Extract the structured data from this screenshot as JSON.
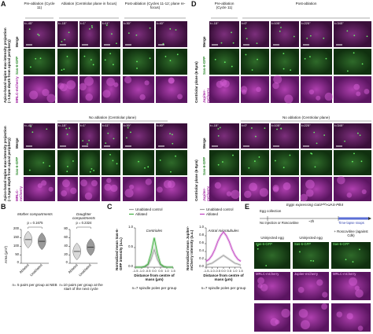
{
  "panel_a": {
    "label": "A",
    "headers": [
      "Pre-ablation (Cycle 11)",
      "Ablation (Centriolar plane in focus)",
      "Post-ablation (Cycles 11-12; plane re-focus)"
    ],
    "times_top": [
      "t=-45''",
      "t=-15''",
      "t=1''",
      "t=11''",
      "t=30''",
      "t=40''"
    ],
    "row_labels_top": [
      "Merge",
      "Sas-6-GFP",
      "MRLC-mCherry"
    ],
    "side_label_top": "Apico-basal region max-intensity projection (~1.5μm depth from apical periphery)",
    "subheader": "No ablation (Centriolar plane)",
    "times_bottom": [
      "t=-45''",
      "t=-15''",
      "t=1''",
      "t=11''",
      "t=30''",
      "t=40''"
    ],
    "row_labels_bottom": [
      "Merge",
      "Sas-6-GFP",
      "MRLC-mCherry"
    ],
    "side_label_bottom": "Apico-basal region max-intensity projection (~1.5μm depth from apical periphery)"
  },
  "panel_d": {
    "label": "D",
    "headers": [
      "Pre-ablation (Cycle 11)",
      "Post-ablation"
    ],
    "times_top": [
      "t=-15''",
      "t=0''",
      "t=105''",
      "t=225''",
      "t=345''"
    ],
    "row_labels_top": [
      "Merge",
      "Sas-6-GFP",
      "Jupiter-mCherry"
    ],
    "side_label_top": "Centriolar plane (6-8μm)",
    "subheader": "No ablation (Centriolar plane)",
    "times_bottom": [
      "t=-15''",
      "t=0''",
      "t=105''",
      "t=225''",
      "t=345''"
    ],
    "row_labels_bottom": [
      "Merge",
      "Sas-6-GFP",
      "Jupiter-mCherry"
    ],
    "side_label_bottom": "Centriolar plane (6-8μm)"
  },
  "panel_b": {
    "label": "B"
  },
  "panel_c": {
    "label": "C"
  },
  "panel_e": {
    "label": "E",
    "title": "Eggs expressing Gal4ᵛ³²>UAS-Plk4",
    "egg_collection": "Egg collection",
    "condition": "No injection or Roscovitine",
    "duration": "~2h",
    "snaps": "Time-lapse snaps",
    "col_headers": [
      "Uninjected egg",
      "Uninjected egg",
      "+ Roscovitine (against Cdk)"
    ],
    "row1_labels": [
      "Sas-6-GFP",
      "Sas-6-GFP",
      "Sas-6-GFP"
    ],
    "row2_labels": [
      "MRLC-mCherry",
      "Jupiter-mCherry",
      "MRLC-mCherry"
    ]
  },
  "chart_data": [
    {
      "type": "violin",
      "title": "Mother compartments",
      "ylabel": "Area (μm²)",
      "categories": [
        "Ablated",
        "Unablated"
      ],
      "values": [
        140,
        130
      ],
      "colors": [
        "#d9d9d9",
        "#9a9a9a"
      ],
      "ylim": [
        0,
        200
      ],
      "yticks": [
        0,
        50,
        100,
        150,
        200
      ],
      "annotation": "p = 0.1675",
      "note": "n= 5 pairs per group at NEB"
    },
    {
      "type": "violin",
      "title": "Daughter compartments",
      "categories": [
        "Ablated",
        "Unablated"
      ],
      "values": [
        28,
        38
      ],
      "colors": [
        "#d9d9d9",
        "#9a9a9a"
      ],
      "ylim": [
        0,
        80
      ],
      "yticks": [
        0,
        20,
        40,
        60,
        80
      ],
      "annotation": "p = 0.2324",
      "note": "n=10 pairs per group at the start of the next cycle"
    },
    {
      "type": "line",
      "title": "Centrioles",
      "ylabel": "Normalized mean Sas-6-GFP intensity (a.u.)",
      "xlabel": "Distance from centre of mass (μm)",
      "x": [
        -1.5,
        -1.25,
        -1.0,
        -0.75,
        -0.5,
        -0.25,
        0.0,
        0.25,
        0.5,
        0.75,
        1.0,
        1.25,
        1.5
      ],
      "series": [
        {
          "name": "Unablated control",
          "color": "#9e9e9e",
          "values": [
            0,
            0,
            0,
            0.01,
            0.05,
            0.2,
            0.45,
            0.2,
            0.05,
            0.01,
            0,
            0,
            0
          ]
        },
        {
          "name": "Ablated",
          "color": "#3fae3f",
          "values": [
            0,
            0,
            0,
            0.02,
            0.08,
            0.35,
            0.75,
            0.35,
            0.08,
            0.02,
            0,
            0,
            0
          ]
        }
      ],
      "xlim": [
        -1.5,
        1.5
      ],
      "xticks": [
        -1.5,
        {
          "value": -1.0,
          "label": "-1.0"
        },
        -0.5,
        {
          "value": 0,
          "label": "0.0"
        },
        0.5,
        {
          "value": 1.0,
          "label": "1.0"
        },
        1.5
      ],
      "ylim": [
        0,
        1
      ],
      "yticks": [
        {
          "value": 0,
          "label": "0.0"
        },
        0.5,
        {
          "value": 1,
          "label": "1.0"
        }
      ],
      "note": "n=7 spindle poles per group"
    },
    {
      "type": "line",
      "title": "Astral microtubules",
      "ylabel": "Normalized mean Jupiter-mCherry intensity (a.u.)",
      "xlabel": "Distance from centre of mass (μm)",
      "x": [
        -1.5,
        -1.25,
        -1.0,
        -0.75,
        -0.5,
        -0.25,
        0.0,
        0.25,
        0.5,
        0.75,
        1.0,
        1.25,
        1.5
      ],
      "series": [
        {
          "name": "Unablated control",
          "color": "#9e9e9e",
          "values": [
            0.05,
            0.08,
            0.1,
            0.15,
            0.2,
            0.25,
            0.3,
            0.25,
            0.2,
            0.15,
            0.1,
            0.08,
            0.05
          ]
        },
        {
          "name": "Ablated",
          "color": "#c040c0",
          "values": [
            0.15,
            0.2,
            0.3,
            0.45,
            0.65,
            0.8,
            0.9,
            0.8,
            0.65,
            0.45,
            0.3,
            0.2,
            0.15
          ]
        }
      ],
      "xlim": [
        -1.5,
        1.5
      ],
      "xticks": [
        -1.5,
        {
          "value": -1.0,
          "label": "-1.0"
        },
        -0.5,
        {
          "value": 0,
          "label": "0.0"
        },
        0.5,
        {
          "value": 1.0,
          "label": "1.0"
        },
        1.5
      ],
      "ylim": [
        0,
        1
      ],
      "yticks": [
        {
          "value": 0,
          "label": "0.0"
        },
        0.2,
        0.4,
        0.6,
        0.8,
        {
          "value": 1,
          "label": "1.0"
        }
      ],
      "note": "n=7 spindle poles per group"
    }
  ]
}
